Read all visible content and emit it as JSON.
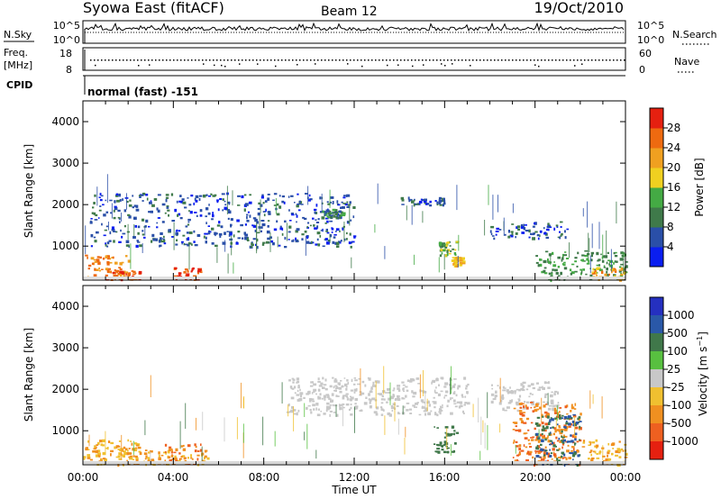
{
  "header": {
    "station": "Syowa East (fitACF)",
    "beam": "Beam 12",
    "date": "19/Oct/2010"
  },
  "top_panel": {
    "left_label": "N.Sky",
    "right_label": "N.Search",
    "left_ticks": [
      "10^5",
      "10^0"
    ],
    "right_ticks": [
      "10^5",
      "10^0"
    ]
  },
  "freq_panel": {
    "left_label_line1": "Freq.",
    "left_label_line2": "[MHz]",
    "right_label": "Nave",
    "left_ticks": [
      "18",
      "8"
    ],
    "right_ticks": [
      "60",
      "0"
    ]
  },
  "cpid": {
    "label": "CPID",
    "mode": "normal (fast) -151"
  },
  "colors": {
    "power_scale": [
      "#0a1ef0",
      "#2a4fa8",
      "#3f7a4a",
      "#44aa44",
      "#f0d020",
      "#f0a020",
      "#ee6a10",
      "#e52010"
    ],
    "velocity_scale": [
      "#2530c0",
      "#2a58a8",
      "#40784a",
      "#58c040",
      "#c8c8c8",
      "#f0c030",
      "#f09020",
      "#ee6020",
      "#e52010"
    ]
  },
  "chart_data": [
    {
      "type": "heatmap",
      "name": "power",
      "xlabel": "",
      "ylabel": "Slant Range [km]",
      "ylim": [
        180,
        4500
      ],
      "y_ticks": [
        "1000",
        "2000",
        "3000",
        "4000"
      ],
      "colorbar_label": "Power [dB]",
      "colorbar_ticks": [
        "4",
        "8",
        "12",
        "16",
        "20",
        "24",
        "28"
      ],
      "colorbar_range": [
        0,
        32
      ],
      "features": [
        {
          "t": [
            0.0,
            2.0
          ],
          "r": [
            200,
            800
          ],
          "value": 24
        },
        {
          "t": [
            1.0,
            2.5
          ],
          "r": [
            200,
            450
          ],
          "value": 28
        },
        {
          "t": [
            4.0,
            5.2
          ],
          "r": [
            200,
            500
          ],
          "value": 28
        },
        {
          "t": [
            0.3,
            12.0
          ],
          "r": [
            1000,
            2300
          ],
          "value": 6
        },
        {
          "t": [
            10.5,
            11.5
          ],
          "r": [
            1700,
            1900
          ],
          "value": 10
        },
        {
          "t": [
            14.0,
            16.0
          ],
          "r": [
            2000,
            2200
          ],
          "value": 6
        },
        {
          "t": [
            15.7,
            16.5
          ],
          "r": [
            800,
            1150
          ],
          "value": 14
        },
        {
          "t": [
            16.3,
            16.8
          ],
          "r": [
            550,
            750
          ],
          "value": 20
        },
        {
          "t": [
            18.0,
            21.5
          ],
          "r": [
            1200,
            1600
          ],
          "value": 6
        },
        {
          "t": [
            20.0,
            24.0
          ],
          "r": [
            200,
            900
          ],
          "value": 12
        },
        {
          "t": [
            22.5,
            24.0
          ],
          "r": [
            200,
            500
          ],
          "value": 22
        }
      ]
    },
    {
      "type": "heatmap",
      "name": "velocity",
      "xlabel": "Time UT",
      "ylabel": "Slant Range [km]",
      "ylim": [
        180,
        4500
      ],
      "y_ticks": [
        "1000",
        "2000",
        "3000",
        "4000"
      ],
      "x_ticks": [
        "00:00",
        "04:00",
        "08:00",
        "12:00",
        "16:00",
        "20:00",
        "00:00"
      ],
      "xlim": [
        0,
        24
      ],
      "colorbar_label": "Velocity [m s^-1]",
      "colorbar_ticks": [
        "1000",
        "500",
        "100",
        "25",
        "-25",
        "-100",
        "-500",
        "-1000"
      ],
      "features": [
        {
          "t": [
            0.0,
            2.5
          ],
          "r": [
            200,
            800
          ],
          "value": -100
        },
        {
          "t": [
            1.5,
            5.5
          ],
          "r": [
            200,
            600
          ],
          "value": -100
        },
        {
          "t": [
            3.5,
            5.2
          ],
          "r": [
            200,
            700
          ],
          "value": -500
        },
        {
          "t": [
            9.0,
            17.0
          ],
          "r": [
            1400,
            2300
          ],
          "value": 0
        },
        {
          "t": [
            15.5,
            16.5
          ],
          "r": [
            500,
            1150
          ],
          "value": 200
        },
        {
          "t": [
            18.0,
            21.0
          ],
          "r": [
            1500,
            2200
          ],
          "value": 0
        },
        {
          "t": [
            19.0,
            22.0
          ],
          "r": [
            200,
            1700
          ],
          "value": -500
        },
        {
          "t": [
            20.0,
            22.0
          ],
          "r": [
            200,
            1400
          ],
          "value": 500
        },
        {
          "t": [
            22.0,
            24.0
          ],
          "r": [
            200,
            800
          ],
          "value": -100
        }
      ]
    }
  ],
  "x_axis": {
    "label": "Time UT",
    "ticks": [
      "00:00",
      "04:00",
      "08:00",
      "12:00",
      "16:00",
      "20:00",
      "00:00"
    ]
  }
}
